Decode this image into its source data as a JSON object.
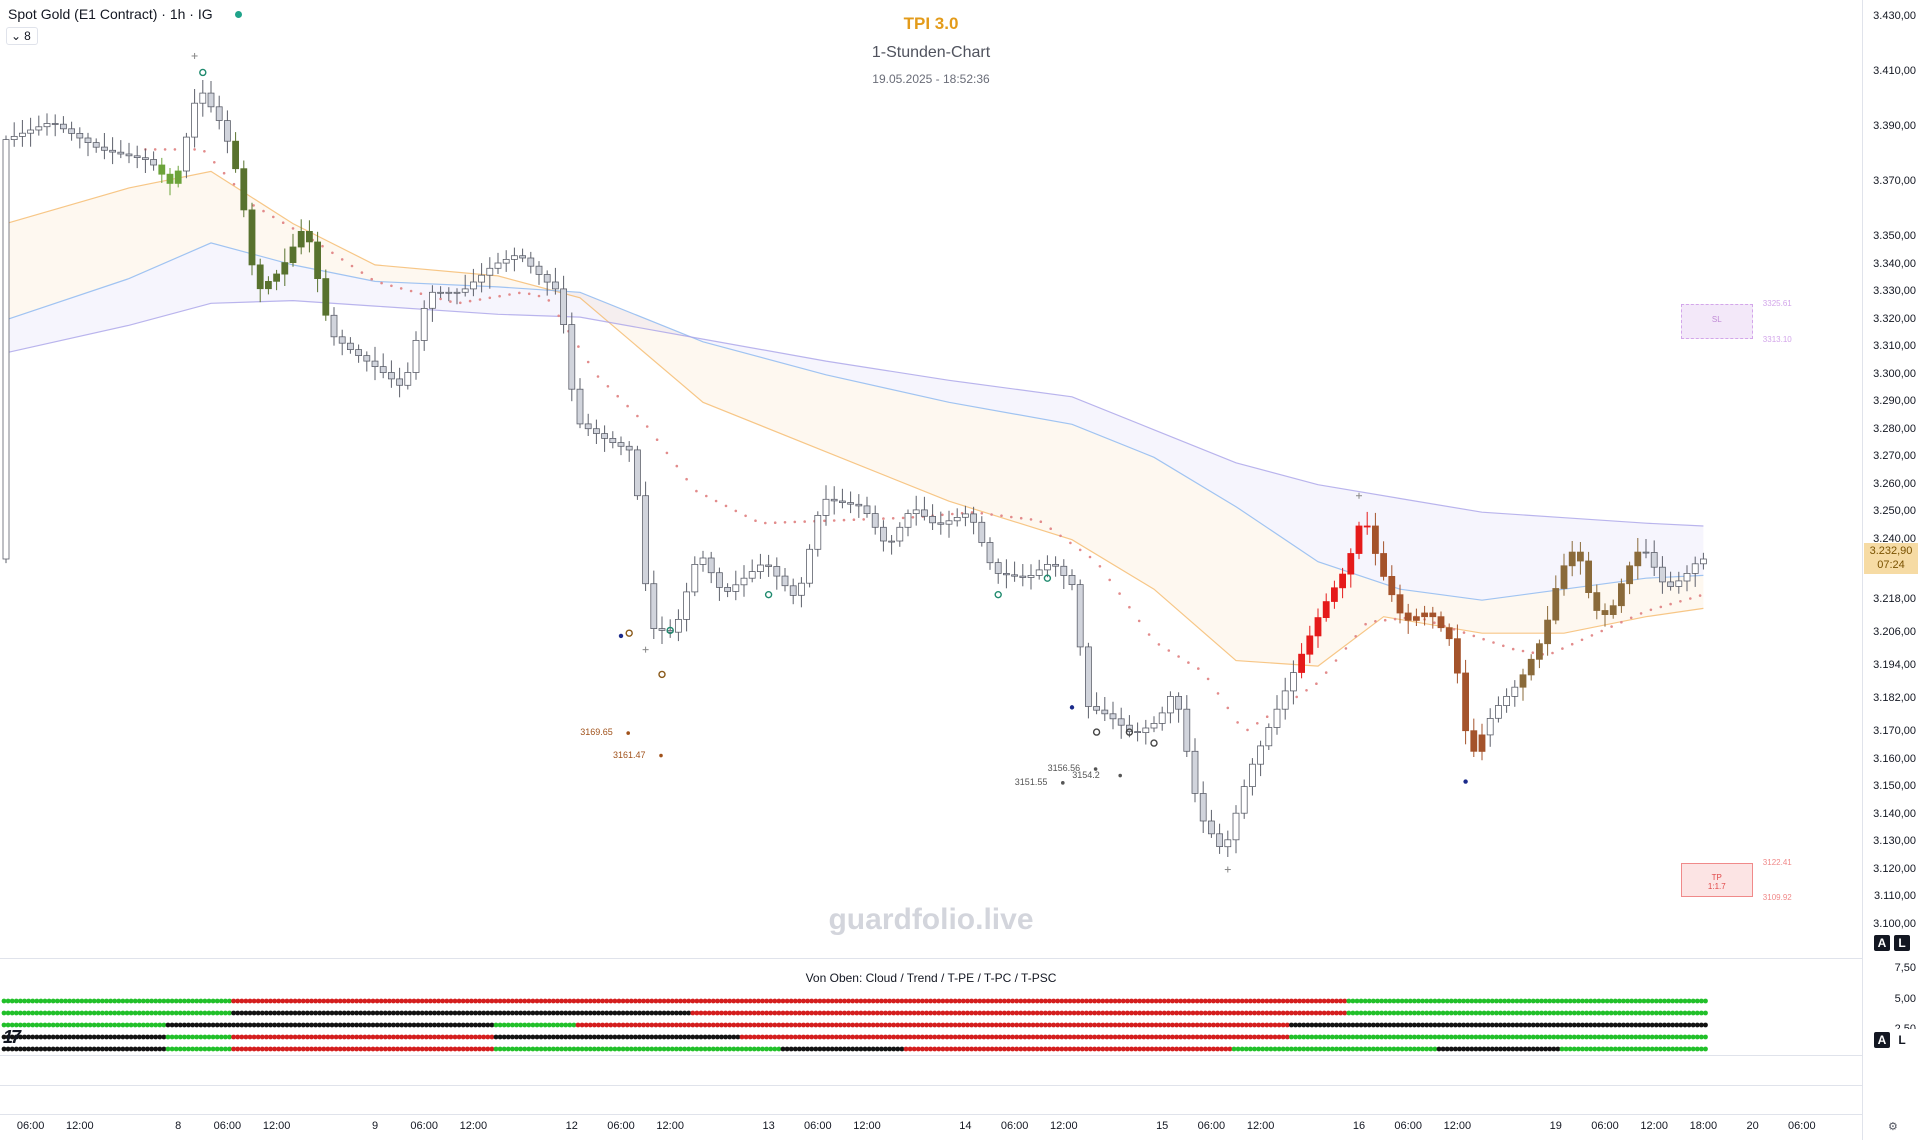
{
  "header": {
    "symbol_title": "Spot Gold (E1 Contract) · 1h · IG",
    "collapse_count": "8",
    "indicator_title": "TPI 3.0",
    "chart_caption": "1-Stunden-Chart",
    "datetime": "19.05.2025 - 18:52:36",
    "watermark": "guardfolio.live",
    "status_color": "#1fa38a"
  },
  "indicator_panel": {
    "label": "Von Oben: Cloud / Trend / T-PE / T-PC / T-PSC",
    "y_ticks": [
      "7,50",
      "5,00",
      "2,50"
    ],
    "button_a": "A",
    "button_l": "L",
    "logo": "17"
  },
  "price_panel": {
    "button_a": "A",
    "button_l": "L",
    "current_price": "3.232,90",
    "countdown": "07:24"
  },
  "chart_data": {
    "type": "candlestick",
    "title": "TPI 3.0",
    "subtitle": "1-Stunden-Chart",
    "symbol": "Spot Gold (E1 Contract) · 1h · IG",
    "timeframe": "1h",
    "ylim": [
      3098,
      3432
    ],
    "y_ticks": [
      {
        "value": 3430,
        "label": "3.430,00"
      },
      {
        "value": 3410,
        "label": "3.410,00"
      },
      {
        "value": 3390,
        "label": "3.390,00"
      },
      {
        "value": 3370,
        "label": "3.370,00"
      },
      {
        "value": 3350,
        "label": "3.350,00"
      },
      {
        "value": 3340,
        "label": "3.340,00"
      },
      {
        "value": 3330,
        "label": "3.330,00"
      },
      {
        "value": 3320,
        "label": "3.320,00"
      },
      {
        "value": 3310,
        "label": "3.310,00"
      },
      {
        "value": 3300,
        "label": "3.300,00"
      },
      {
        "value": 3290,
        "label": "3.290,00"
      },
      {
        "value": 3280,
        "label": "3.280,00"
      },
      {
        "value": 3270,
        "label": "3.270,00"
      },
      {
        "value": 3260,
        "label": "3.260,00"
      },
      {
        "value": 3250,
        "label": "3.250,00"
      },
      {
        "value": 3240,
        "label": "3.240,00"
      },
      {
        "value": 3218,
        "label": "3.218,00"
      },
      {
        "value": 3206,
        "label": "3.206,00"
      },
      {
        "value": 3194,
        "label": "3.194,00"
      },
      {
        "value": 3182,
        "label": "3.182,00"
      },
      {
        "value": 3170,
        "label": "3.170,00"
      },
      {
        "value": 3160,
        "label": "3.160,00"
      },
      {
        "value": 3150,
        "label": "3.150,00"
      },
      {
        "value": 3140,
        "label": "3.140,00"
      },
      {
        "value": 3130,
        "label": "3.130,00"
      },
      {
        "value": 3120,
        "label": "3.120,00"
      },
      {
        "value": 3110,
        "label": "3.110,00"
      },
      {
        "value": 3100,
        "label": "3.100,00"
      }
    ],
    "x_ticks": [
      {
        "bar": 3,
        "label": "06:00"
      },
      {
        "bar": 9,
        "label": "12:00"
      },
      {
        "bar": 21,
        "label": "8"
      },
      {
        "bar": 27,
        "label": "06:00"
      },
      {
        "bar": 33,
        "label": "12:00"
      },
      {
        "bar": 45,
        "label": "9"
      },
      {
        "bar": 51,
        "label": "06:00"
      },
      {
        "bar": 57,
        "label": "12:00"
      },
      {
        "bar": 69,
        "label": "12"
      },
      {
        "bar": 75,
        "label": "06:00"
      },
      {
        "bar": 81,
        "label": "12:00"
      },
      {
        "bar": 93,
        "label": "13"
      },
      {
        "bar": 99,
        "label": "06:00"
      },
      {
        "bar": 105,
        "label": "12:00"
      },
      {
        "bar": 117,
        "label": "14"
      },
      {
        "bar": 123,
        "label": "06:00"
      },
      {
        "bar": 129,
        "label": "12:00"
      },
      {
        "bar": 141,
        "label": "15"
      },
      {
        "bar": 147,
        "label": "06:00"
      },
      {
        "bar": 153,
        "label": "12:00"
      },
      {
        "bar": 165,
        "label": "16"
      },
      {
        "bar": 171,
        "label": "06:00"
      },
      {
        "bar": 177,
        "label": "12:00"
      },
      {
        "bar": 189,
        "label": "19"
      },
      {
        "bar": 195,
        "label": "06:00"
      },
      {
        "bar": 201,
        "label": "12:00"
      },
      {
        "bar": 207,
        "label": "18:00"
      },
      {
        "bar": 213,
        "label": "20"
      },
      {
        "bar": 219,
        "label": "06:00"
      }
    ],
    "price_anchors": [
      [
        0,
        3385
      ],
      [
        6,
        3392
      ],
      [
        12,
        3382
      ],
      [
        18,
        3378
      ],
      [
        21,
        3368
      ],
      [
        24,
        3405
      ],
      [
        27,
        3390
      ],
      [
        29,
        3370
      ],
      [
        31,
        3330
      ],
      [
        34,
        3338
      ],
      [
        37,
        3355
      ],
      [
        40,
        3315
      ],
      [
        43,
        3308
      ],
      [
        46,
        3302
      ],
      [
        49,
        3295
      ],
      [
        52,
        3330
      ],
      [
        56,
        3330
      ],
      [
        60,
        3340
      ],
      [
        63,
        3344
      ],
      [
        66,
        3335
      ],
      [
        68,
        3330
      ],
      [
        70,
        3283
      ],
      [
        74,
        3276
      ],
      [
        77,
        3272
      ],
      [
        79,
        3208
      ],
      [
        82,
        3206
      ],
      [
        85,
        3236
      ],
      [
        88,
        3220
      ],
      [
        93,
        3232
      ],
      [
        97,
        3218
      ],
      [
        100,
        3255
      ],
      [
        105,
        3252
      ],
      [
        108,
        3237
      ],
      [
        111,
        3252
      ],
      [
        114,
        3245
      ],
      [
        118,
        3250
      ],
      [
        121,
        3228
      ],
      [
        125,
        3226
      ],
      [
        128,
        3232
      ],
      [
        131,
        3222
      ],
      [
        132,
        3180
      ],
      [
        135,
        3176
      ],
      [
        138,
        3169
      ],
      [
        141,
        3174
      ],
      [
        143,
        3186
      ],
      [
        146,
        3140
      ],
      [
        149,
        3126
      ],
      [
        152,
        3155
      ],
      [
        155,
        3175
      ],
      [
        158,
        3195
      ],
      [
        161,
        3215
      ],
      [
        164,
        3230
      ],
      [
        166,
        3250
      ],
      [
        168,
        3230
      ],
      [
        171,
        3210
      ],
      [
        174,
        3214
      ],
      [
        177,
        3202
      ],
      [
        179,
        3160
      ],
      [
        182,
        3178
      ],
      [
        185,
        3188
      ],
      [
        188,
        3205
      ],
      [
        190,
        3228
      ],
      [
        192,
        3238
      ],
      [
        194,
        3215
      ],
      [
        196,
        3212
      ],
      [
        198,
        3228
      ],
      [
        200,
        3238
      ],
      [
        203,
        3222
      ],
      [
        205,
        3226
      ],
      [
        207,
        3233
      ]
    ],
    "bar_colors": [
      {
        "from": 19,
        "to": 22,
        "color": "#6ba33a"
      },
      {
        "from": 28,
        "to": 40,
        "color": "#58722e"
      },
      {
        "from": 158,
        "to": 167,
        "color": "#e51a1a"
      },
      {
        "from": 167,
        "to": 181,
        "color": "#a4532b"
      },
      {
        "from": 185,
        "to": 200,
        "color": "#8a6a3a"
      }
    ],
    "ema_bands": [
      {
        "name": "fast",
        "color": "#f5b96a",
        "points": [
          [
            0,
            3355
          ],
          [
            15,
            3368
          ],
          [
            25,
            3374
          ],
          [
            35,
            3355
          ],
          [
            45,
            3340
          ],
          [
            60,
            3336
          ],
          [
            70,
            3328
          ],
          [
            85,
            3290
          ],
          [
            100,
            3272
          ],
          [
            115,
            3254
          ],
          [
            130,
            3240
          ],
          [
            140,
            3222
          ],
          [
            150,
            3196
          ],
          [
            160,
            3194
          ],
          [
            168,
            3212
          ],
          [
            180,
            3206
          ],
          [
            190,
            3206
          ],
          [
            200,
            3212
          ],
          [
            207,
            3215
          ]
        ]
      },
      {
        "name": "mid",
        "color": "#8ab6f0",
        "points": [
          [
            0,
            3320
          ],
          [
            15,
            3335
          ],
          [
            25,
            3348
          ],
          [
            35,
            3340
          ],
          [
            45,
            3334
          ],
          [
            60,
            3332
          ],
          [
            70,
            3330
          ],
          [
            85,
            3312
          ],
          [
            100,
            3300
          ],
          [
            115,
            3290
          ],
          [
            130,
            3282
          ],
          [
            140,
            3270
          ],
          [
            150,
            3252
          ],
          [
            160,
            3232
          ],
          [
            170,
            3222
          ],
          [
            180,
            3218
          ],
          [
            190,
            3222
          ],
          [
            200,
            3226
          ],
          [
            207,
            3227
          ]
        ]
      },
      {
        "name": "slow",
        "color": "#a9a2e8",
        "points": [
          [
            0,
            3308
          ],
          [
            15,
            3318
          ],
          [
            25,
            3326
          ],
          [
            35,
            3327
          ],
          [
            45,
            3325
          ],
          [
            60,
            3322
          ],
          [
            70,
            3321
          ],
          [
            85,
            3313
          ],
          [
            100,
            3305
          ],
          [
            115,
            3298
          ],
          [
            130,
            3292
          ],
          [
            140,
            3280
          ],
          [
            150,
            3268
          ],
          [
            160,
            3260
          ],
          [
            170,
            3255
          ],
          [
            180,
            3250
          ],
          [
            190,
            3248
          ],
          [
            200,
            3246
          ],
          [
            207,
            3245
          ]
        ]
      }
    ],
    "trend_dots": {
      "color": "#e28b8b",
      "points": [
        [
          17,
          3382
        ],
        [
          24,
          3382
        ],
        [
          30,
          3362
        ],
        [
          38,
          3348
        ],
        [
          45,
          3334
        ],
        [
          55,
          3326
        ],
        [
          63,
          3330
        ],
        [
          66,
          3328
        ],
        [
          72,
          3300
        ],
        [
          78,
          3282
        ],
        [
          84,
          3258
        ],
        [
          92,
          3246
        ],
        [
          101,
          3247
        ],
        [
          110,
          3248
        ],
        [
          118,
          3250
        ],
        [
          126,
          3247
        ],
        [
          133,
          3232
        ],
        [
          140,
          3203
        ],
        [
          146,
          3192
        ],
        [
          151,
          3170
        ],
        [
          154,
          3176
        ],
        [
          160,
          3188
        ],
        [
          166,
          3210
        ],
        [
          172,
          3212
        ],
        [
          178,
          3206
        ],
        [
          184,
          3200
        ],
        [
          188,
          3198
        ],
        [
          194,
          3206
        ],
        [
          200,
          3214
        ],
        [
          207,
          3220
        ]
      ]
    },
    "markers": [
      {
        "bar": 23,
        "price": 3416,
        "label": "+",
        "color": "#888888"
      },
      {
        "bar": 24,
        "price": 3410,
        "label": "o",
        "color": "#1f8a6e"
      },
      {
        "bar": 76,
        "price": 3206,
        "label": "o",
        "color": "#8a5a1a"
      },
      {
        "bar": 75,
        "price": 3205,
        "label": "•",
        "color": "#1a2a8a"
      },
      {
        "bar": 81,
        "price": 3207,
        "label": "o",
        "color": "#1f8a6e"
      },
      {
        "bar": 78,
        "price": 3200,
        "label": "+",
        "color": "#888888"
      },
      {
        "bar": 80,
        "price": 3191,
        "label": "o",
        "color": "#8a5a1a"
      },
      {
        "bar": 93,
        "price": 3220,
        "label": "o",
        "color": "#1f8a6e"
      },
      {
        "bar": 121,
        "price": 3220,
        "label": "o",
        "color": "#1f8a6e"
      },
      {
        "bar": 127,
        "price": 3226,
        "label": "o",
        "color": "#1f8a6e"
      },
      {
        "bar": 130,
        "price": 3179,
        "label": "•",
        "color": "#1a2a8a"
      },
      {
        "bar": 133,
        "price": 3170,
        "label": "o",
        "color": "#444444"
      },
      {
        "bar": 137,
        "price": 3170,
        "label": "o",
        "color": "#444444"
      },
      {
        "bar": 140,
        "price": 3166,
        "label": "o",
        "color": "#444444"
      },
      {
        "bar": 149,
        "price": 3120,
        "label": "+",
        "color": "#888888"
      },
      {
        "bar": 165,
        "price": 3256,
        "label": "+",
        "color": "#888888"
      },
      {
        "bar": 178,
        "price": 3152,
        "label": "•",
        "color": "#1a2a8a"
      }
    ],
    "price_labels": [
      {
        "bar": 71,
        "price": 3169.65,
        "label": "3169.65",
        "color": "#a0521b"
      },
      {
        "bar": 75,
        "price": 3161.47,
        "label": "3161.47",
        "color": "#a0521b"
      },
      {
        "bar": 128,
        "price": 3156.56,
        "label": "3156.56",
        "color": "#555555"
      },
      {
        "bar": 131,
        "price": 3154.2,
        "label": "3154.2",
        "color": "#555555"
      },
      {
        "bar": 124,
        "price": 3151.55,
        "label": "3151.55",
        "color": "#555555"
      }
    ],
    "zones": [
      {
        "kind": "SL",
        "label": "SL",
        "from_bar": 204,
        "to_bar": 214,
        "top": 3325.61,
        "bottom": 3313.1,
        "top_label": "3325.61",
        "bottom_label": "3313.10",
        "color": "#d3a6ea"
      },
      {
        "kind": "TP",
        "label": "TP",
        "ratio": "1:1.7",
        "from_bar": 204,
        "to_bar": 214,
        "top": 3122.41,
        "bottom": 3109.92,
        "top_label": "3122.41",
        "bottom_label": "3109.92",
        "color": "#f08a8a"
      }
    ],
    "indicator_rows": [
      {
        "name": "Cloud",
        "segments": [
          [
            0,
            28,
            "green"
          ],
          [
            28,
            164,
            "red"
          ],
          [
            164,
            208,
            "green"
          ]
        ]
      },
      {
        "name": "Trend",
        "segments": [
          [
            0,
            28,
            "green"
          ],
          [
            28,
            69,
            "black"
          ],
          [
            69,
            84,
            "black"
          ],
          [
            84,
            164,
            "red"
          ],
          [
            164,
            208,
            "green"
          ]
        ]
      },
      {
        "name": "T-PE",
        "segments": [
          [
            0,
            20,
            "green"
          ],
          [
            20,
            28,
            "black"
          ],
          [
            28,
            60,
            "black"
          ],
          [
            60,
            70,
            "green"
          ],
          [
            70,
            157,
            "red"
          ],
          [
            157,
            208,
            "black"
          ]
        ]
      },
      {
        "name": "T-PC",
        "segments": [
          [
            0,
            20,
            "black"
          ],
          [
            20,
            28,
            "green"
          ],
          [
            28,
            60,
            "red"
          ],
          [
            60,
            90,
            "black"
          ],
          [
            90,
            157,
            "red"
          ],
          [
            157,
            208,
            "green"
          ]
        ]
      },
      {
        "name": "T-PSC",
        "segments": [
          [
            0,
            20,
            "black"
          ],
          [
            20,
            28,
            "green"
          ],
          [
            28,
            60,
            "red"
          ],
          [
            60,
            95,
            "green"
          ],
          [
            95,
            110,
            "black"
          ],
          [
            110,
            150,
            "red"
          ],
          [
            150,
            175,
            "green"
          ],
          [
            175,
            190,
            "black"
          ],
          [
            190,
            208,
            "green"
          ]
        ]
      }
    ],
    "indicator_colors": {
      "green": "#22c02a",
      "red": "#d41e1e",
      "black": "#131313"
    }
  }
}
